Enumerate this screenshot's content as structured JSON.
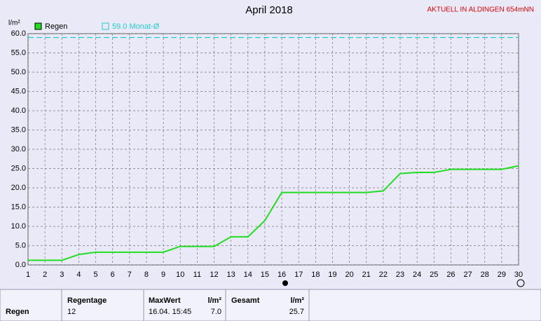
{
  "chart_data": {
    "type": "line",
    "title": "April 2018",
    "annotation": "AKTUELL IN ALDINGEN 654mNN",
    "y_label": "l/m²",
    "x": [
      1,
      2,
      3,
      4,
      5,
      6,
      7,
      8,
      9,
      10,
      11,
      12,
      13,
      14,
      15,
      16,
      17,
      18,
      19,
      20,
      21,
      22,
      23,
      24,
      25,
      26,
      27,
      28,
      29,
      30
    ],
    "series": [
      {
        "name": "Regen",
        "color": "#22dd22",
        "values": [
          1.2,
          1.2,
          1.2,
          2.7,
          3.3,
          3.3,
          3.3,
          3.3,
          3.3,
          4.8,
          4.8,
          4.8,
          7.3,
          7.3,
          11.5,
          18.8,
          18.8,
          18.8,
          18.8,
          18.8,
          18.8,
          19.2,
          23.7,
          24.0,
          24.0,
          24.8,
          24.8,
          24.8,
          24.8,
          25.7
        ]
      }
    ],
    "reference": {
      "name": "59.0 Monat-Ø",
      "value": 59.0,
      "color": "#22cccc"
    },
    "xlim": [
      1,
      30
    ],
    "xticks": [
      1,
      2,
      3,
      4,
      5,
      6,
      7,
      8,
      9,
      10,
      11,
      12,
      13,
      14,
      15,
      16,
      17,
      18,
      19,
      20,
      21,
      22,
      23,
      24,
      25,
      26,
      27,
      28,
      29,
      30
    ],
    "ylim": [
      0,
      60
    ],
    "yticks": [
      {
        "value": 0,
        "label": "0.0"
      },
      {
        "value": 5,
        "label": "5.0"
      },
      {
        "value": 10,
        "label": "10.0"
      },
      {
        "value": 15,
        "label": "15.0"
      },
      {
        "value": 20,
        "label": "20.0"
      },
      {
        "value": 25,
        "label": "25.0"
      },
      {
        "value": 30,
        "label": "30.0"
      },
      {
        "value": 35,
        "label": "35.0"
      },
      {
        "value": 40,
        "label": "40.0"
      },
      {
        "value": 45,
        "label": "45.0"
      },
      {
        "value": 50,
        "label": "50.0"
      },
      {
        "value": 55,
        "label": "55.0"
      },
      {
        "value": 60,
        "label": "60.0"
      }
    ],
    "grid": true
  },
  "table": {
    "row_label": "Regen",
    "regentage": {
      "header": "Regentage",
      "value": "12"
    },
    "maxwert": {
      "header": "MaxWert",
      "unit": "l/m²",
      "date": "16.04. 15:45",
      "value": "7.0"
    },
    "gesamt": {
      "header": "Gesamt",
      "unit": "l/m²",
      "value": "25.7"
    }
  }
}
